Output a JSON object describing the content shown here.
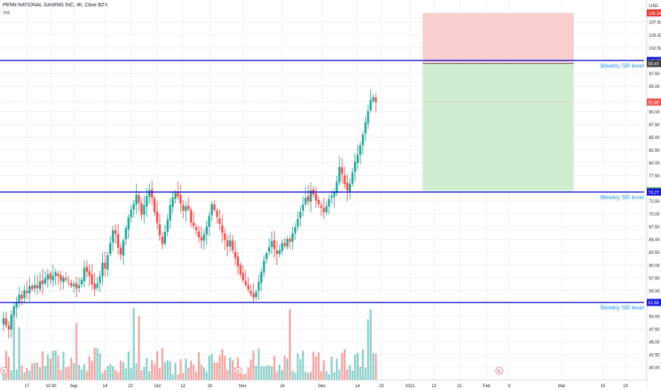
{
  "header": {
    "symbol_line": "PENN NATIONAL GAMING INC, 4h, Cboe BZX",
    "volume_label": "Vol"
  },
  "currency": "USD",
  "colors": {
    "up": "#26a69a",
    "down": "#ef5350",
    "sr_line": "#1a1ad6",
    "stop_zone": "#f8c6c5",
    "target_zone": "#cdeccf",
    "grid": "#eef0f3"
  },
  "chart_data": {
    "type": "candlestick",
    "ylim": [
      37.5,
      111
    ],
    "y_ticks": [
      "107.50",
      "105.00",
      "102.50",
      "97.50",
      "95.00",
      "90.00",
      "87.50",
      "85.00",
      "82.50",
      "80.00",
      "77.50",
      "72.50",
      "70.00",
      "67.50",
      "65.00",
      "62.50",
      "60.00",
      "57.50",
      "55.00",
      "50.00",
      "47.50",
      "45.00",
      "42.50",
      "40.00"
    ],
    "x_ticks": [
      "17",
      "10:30",
      "Sep",
      "14",
      "22",
      "Oct",
      "12",
      "20",
      "Nov",
      "16",
      "Dec",
      "14",
      "22",
      "2021",
      "12",
      "21",
      "Feb",
      "9",
      "Mar",
      "15",
      "23"
    ],
    "sr_levels": [
      {
        "price": 100.0,
        "label": "Weekly SR level",
        "badge": "100.00"
      },
      {
        "price": 74.27,
        "label": "Weekly SR level",
        "badge": "74.27"
      },
      {
        "price": 52.68,
        "label": "Weekly SR level",
        "badge": "52.68"
      }
    ],
    "position": {
      "stop": 109.3,
      "entry": 99.4,
      "target": 74.48,
      "stop_label": "109.30",
      "entry_label": "99.40",
      "target_label": "74.48"
    },
    "last_price": {
      "value": 91.88,
      "label": "91.88"
    },
    "markers": [
      {
        "label": "E",
        "at": "Aug"
      },
      {
        "label": "E",
        "at": "Nov"
      },
      {
        "label": "E",
        "at": "Feb"
      }
    ],
    "closes": [
      49.6,
      48.2,
      47.4,
      50.3,
      51.9,
      52.6,
      54.2,
      53.4,
      55.1,
      54.5,
      55.9,
      55.3,
      56.1,
      55.5,
      56.8,
      56.3,
      57.4,
      58.1,
      57.2,
      57.9,
      58.6,
      57.8,
      56.9,
      57.6,
      57.1,
      56.7,
      55.9,
      56.3,
      55.4,
      56.0,
      57.1,
      59.4,
      58.7,
      57.9,
      56.2,
      55.3,
      56.4,
      57.8,
      60.5,
      59.3,
      61.9,
      64.3,
      66.8,
      66.1,
      63.4,
      62.1,
      64.8,
      67.2,
      69.3,
      70.8,
      71.9,
      73.8,
      72.2,
      69.8,
      71.7,
      73.5,
      74.6,
      73.1,
      70.3,
      68.2,
      65.8,
      64.1,
      66.5,
      68.9,
      71.7,
      73.2,
      74.1,
      73.4,
      72.0,
      70.6,
      71.5,
      70.9,
      68.3,
      67.6,
      66.8,
      65.4,
      64.8,
      66.0,
      67.5,
      69.6,
      71.9,
      70.8,
      69.4,
      68.0,
      66.3,
      64.9,
      63.6,
      64.8,
      62.9,
      61.4,
      59.8,
      58.2,
      57.0,
      56.1,
      55.2,
      54.3,
      53.6,
      54.8,
      56.7,
      58.6,
      60.9,
      62.3,
      63.5,
      64.7,
      63.1,
      62.2,
      62.9,
      64.3,
      63.8,
      65.1,
      64.6,
      66.2,
      67.4,
      69.0,
      70.4,
      71.8,
      73.2,
      72.5,
      74.6,
      73.8,
      72.6,
      71.9,
      71.2,
      70.4,
      71.5,
      72.9,
      73.5,
      74.3,
      76.3,
      79.2,
      77.8,
      75.8,
      74.6,
      75.9,
      78.1,
      80.2,
      81.5,
      83.4,
      85.5,
      87.9,
      90.1,
      92.3,
      92.8,
      91.88
    ]
  }
}
